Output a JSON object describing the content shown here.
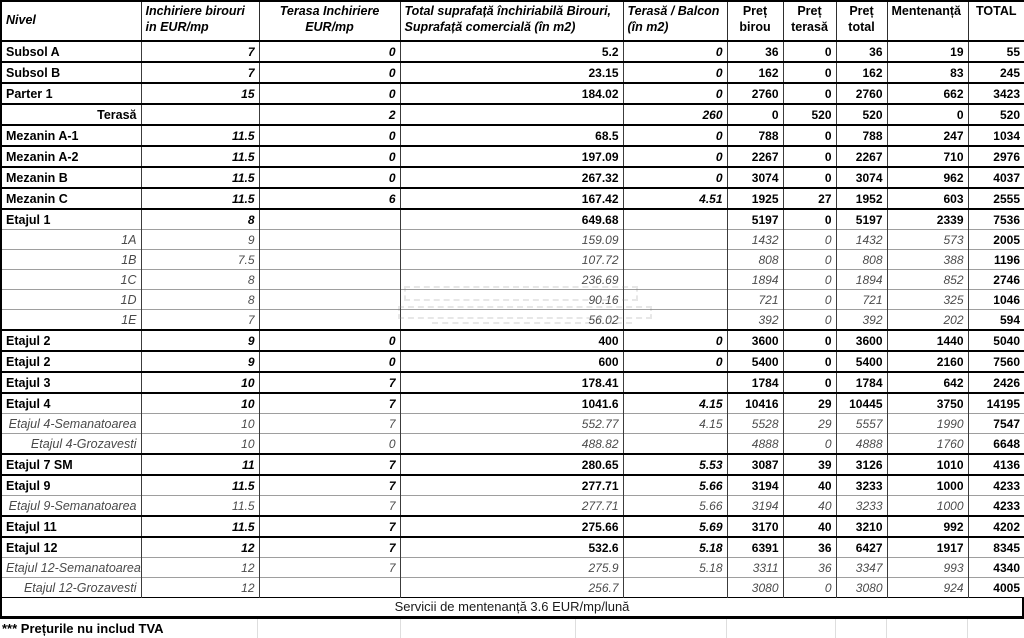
{
  "table": {
    "columns": [
      {
        "label": "Nivel"
      },
      {
        "label": "Inchiriere birouri in EUR/mp"
      },
      {
        "label": "Terasa Inchiriere EUR/mp"
      },
      {
        "label": "Total suprafață închiriabilă Birouri, Suprafață comercială (în m2)"
      },
      {
        "label": "Terasă / Balcon (în m2)"
      },
      {
        "label": "Preț birou"
      },
      {
        "label": "Preț terasă"
      },
      {
        "label": "Preț total"
      },
      {
        "label": "Mentenanță"
      },
      {
        "label": "TOTAL"
      }
    ],
    "rows": [
      {
        "label": "Subsol A",
        "style": "main",
        "values": [
          "7",
          "0",
          "5.2",
          "0",
          "36",
          "0",
          "36",
          "19",
          "55"
        ]
      },
      {
        "label": "Subsol B",
        "style": "main",
        "values": [
          "7",
          "0",
          "23.15",
          "0",
          "162",
          "0",
          "162",
          "83",
          "245"
        ]
      },
      {
        "label": "Parter 1",
        "style": "main",
        "values": [
          "15",
          "0",
          "184.02",
          "0",
          "2760",
          "0",
          "2760",
          "662",
          "3423"
        ]
      },
      {
        "label": "Terasă",
        "style": "main label-right",
        "values": [
          "",
          "2",
          "",
          "260",
          "0",
          "520",
          "520",
          "0",
          "520"
        ]
      },
      {
        "label": "Mezanin A-1",
        "style": "main",
        "values": [
          "11.5",
          "0",
          "68.5",
          "0",
          "788",
          "0",
          "788",
          "247",
          "1034"
        ]
      },
      {
        "label": "Mezanin A-2",
        "style": "main",
        "values": [
          "11.5",
          "0",
          "197.09",
          "0",
          "2267",
          "0",
          "2267",
          "710",
          "2976"
        ]
      },
      {
        "label": "Mezanin B",
        "style": "main",
        "values": [
          "11.5",
          "0",
          "267.32",
          "0",
          "3074",
          "0",
          "3074",
          "962",
          "4037"
        ]
      },
      {
        "label": "Mezanin C",
        "style": "main",
        "values": [
          "11.5",
          "6",
          "167.42",
          "4.51",
          "1925",
          "27",
          "1952",
          "603",
          "2555"
        ]
      },
      {
        "label": "Etajul 1",
        "style": "main",
        "values": [
          "8",
          "",
          "649.68",
          "",
          "5197",
          "0",
          "5197",
          "2339",
          "7536"
        ]
      },
      {
        "label": "1A",
        "style": "sub",
        "values": [
          "9",
          "",
          "159.09",
          "",
          "1432",
          "0",
          "1432",
          "573",
          "2005"
        ]
      },
      {
        "label": "1B",
        "style": "sub",
        "values": [
          "7.5",
          "",
          "107.72",
          "",
          "808",
          "0",
          "808",
          "388",
          "1196"
        ]
      },
      {
        "label": "1C",
        "style": "sub",
        "values": [
          "8",
          "",
          "236.69",
          "",
          "1894",
          "0",
          "1894",
          "852",
          "2746"
        ]
      },
      {
        "label": "1D",
        "style": "sub",
        "values": [
          "8",
          "",
          "90.16",
          "",
          "721",
          "0",
          "721",
          "325",
          "1046"
        ]
      },
      {
        "label": "1E",
        "style": "sub",
        "values": [
          "7",
          "",
          "56.02",
          "",
          "392",
          "0",
          "392",
          "202",
          "594"
        ]
      },
      {
        "label": "Etajul 2",
        "style": "main",
        "values": [
          "9",
          "0",
          "400",
          "0",
          "3600",
          "0",
          "3600",
          "1440",
          "5040"
        ]
      },
      {
        "label": "Etajul 2",
        "style": "main",
        "values": [
          "9",
          "0",
          "600",
          "0",
          "5400",
          "0",
          "5400",
          "2160",
          "7560"
        ]
      },
      {
        "label": "Etajul 3",
        "style": "main",
        "values": [
          "10",
          "7",
          "178.41",
          "",
          "1784",
          "0",
          "1784",
          "642",
          "2426"
        ]
      },
      {
        "label": "Etajul 4",
        "style": "main",
        "values": [
          "10",
          "7",
          "1041.6",
          "4.15",
          "10416",
          "29",
          "10445",
          "3750",
          "14195"
        ]
      },
      {
        "label": "Etajul 4-Semanatoarea",
        "style": "sub",
        "values": [
          "10",
          "7",
          "552.77",
          "4.15",
          "5528",
          "29",
          "5557",
          "1990",
          "7547"
        ]
      },
      {
        "label": "Etajul 4-Grozavesti",
        "style": "sub",
        "values": [
          "10",
          "0",
          "488.82",
          "",
          "4888",
          "0",
          "4888",
          "1760",
          "6648"
        ]
      },
      {
        "label": "Etajul 7 SM",
        "style": "main",
        "values": [
          "11",
          "7",
          "280.65",
          "5.53",
          "3087",
          "39",
          "3126",
          "1010",
          "4136"
        ]
      },
      {
        "label": "Etajul 9",
        "style": "main",
        "values": [
          "11.5",
          "7",
          "277.71",
          "5.66",
          "3194",
          "40",
          "3233",
          "1000",
          "4233"
        ]
      },
      {
        "label": "Etajul 9-Semanatoarea",
        "style": "sub",
        "values": [
          "11.5",
          "7",
          "277.71",
          "5.66",
          "3194",
          "40",
          "3233",
          "1000",
          "4233"
        ]
      },
      {
        "label": "Etajul 11",
        "style": "main",
        "values": [
          "11.5",
          "7",
          "275.66",
          "5.69",
          "3170",
          "40",
          "3210",
          "992",
          "4202"
        ]
      },
      {
        "label": "Etajul 12",
        "style": "main",
        "values": [
          "12",
          "7",
          "532.6",
          "5.18",
          "6391",
          "36",
          "6427",
          "1917",
          "8345"
        ]
      },
      {
        "label": "Etajul 12-Semanatoarea",
        "style": "sub",
        "values": [
          "12",
          "7",
          "275.9",
          "5.18",
          "3311",
          "36",
          "3347",
          "993",
          "4340"
        ]
      },
      {
        "label": "Etajul 12-Grozavesti",
        "style": "sub",
        "values": [
          "12",
          "",
          "256.7",
          "",
          "3080",
          "0",
          "3080",
          "924",
          "4005"
        ]
      }
    ]
  },
  "footer": {
    "maintenance_note": "Servicii de mentenanță 3.6 EUR/mp/lună",
    "vat_note": "*** Prețurile nu includ TVA"
  },
  "colors": {
    "text": "#000000",
    "sub_text": "#4a4a4a",
    "grid_main": "#000000",
    "grid_sub": "#9e9e9e",
    "faint_grid": "#dedede",
    "background": "#ffffff"
  }
}
